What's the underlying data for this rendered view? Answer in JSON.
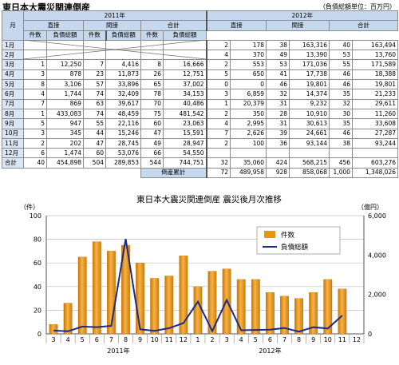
{
  "page_title": "東日本大震災関連倒産",
  "unit_note": "（負債総額単位：百万円）",
  "table": {
    "col_month": "月",
    "year_headers": [
      "2011年",
      "2012年"
    ],
    "group_headers": [
      "直接",
      "間接",
      "合計"
    ],
    "sub_headers": [
      "件数",
      "負債総額"
    ],
    "rows": [
      {
        "m": "1月",
        "y2011": [
          "",
          "",
          "",
          "",
          "",
          ""
        ],
        "y2012": [
          "2",
          "178",
          "38",
          "163,316",
          "40",
          "163,494"
        ]
      },
      {
        "m": "2月",
        "y2011": [
          "",
          "",
          "",
          "",
          "",
          ""
        ],
        "y2012": [
          "4",
          "370",
          "49",
          "13,390",
          "53",
          "13,760"
        ]
      },
      {
        "m": "3月",
        "y2011": [
          "1",
          "12,250",
          "7",
          "4,416",
          "8",
          "16,666"
        ],
        "y2012": [
          "2",
          "553",
          "53",
          "171,036",
          "55",
          "171,589"
        ]
      },
      {
        "m": "4月",
        "y2011": [
          "3",
          "878",
          "23",
          "11,873",
          "26",
          "12,751"
        ],
        "y2012": [
          "5",
          "650",
          "41",
          "17,738",
          "46",
          "18,388"
        ]
      },
      {
        "m": "5月",
        "y2011": [
          "8",
          "3,106",
          "57",
          "33,896",
          "65",
          "37,002"
        ],
        "y2012": [
          "0",
          "0",
          "46",
          "19,801",
          "46",
          "19,801"
        ]
      },
      {
        "m": "6月",
        "y2011": [
          "4",
          "1,744",
          "74",
          "32,409",
          "78",
          "34,153"
        ],
        "y2012": [
          "3",
          "6,859",
          "32",
          "14,374",
          "35",
          "21,233"
        ]
      },
      {
        "m": "7月",
        "y2011": [
          "7",
          "869",
          "63",
          "39,617",
          "70",
          "40,486"
        ],
        "y2012": [
          "1",
          "20,379",
          "31",
          "9,232",
          "32",
          "29,611"
        ]
      },
      {
        "m": "8月",
        "y2011": [
          "1",
          "433,083",
          "74",
          "48,459",
          "75",
          "481,542"
        ],
        "y2012": [
          "2",
          "350",
          "28",
          "10,910",
          "30",
          "11,260"
        ]
      },
      {
        "m": "9月",
        "y2011": [
          "5",
          "947",
          "55",
          "22,116",
          "60",
          "23,063"
        ],
        "y2012": [
          "4",
          "2,995",
          "31",
          "30,613",
          "35",
          "33,608"
        ]
      },
      {
        "m": "10月",
        "y2011": [
          "3",
          "345",
          "44",
          "15,246",
          "47",
          "15,591"
        ],
        "y2012": [
          "7",
          "2,626",
          "39",
          "24,661",
          "46",
          "27,287"
        ]
      },
      {
        "m": "11月",
        "y2011": [
          "2",
          "202",
          "47",
          "28,745",
          "49",
          "28,947"
        ],
        "y2012": [
          "2",
          "100",
          "36",
          "93,144",
          "38",
          "93,244"
        ]
      },
      {
        "m": "12月",
        "y2011": [
          "6",
          "1,474",
          "60",
          "53,076",
          "66",
          "54,550"
        ],
        "y2012": [
          "",
          "",
          "",
          "",
          "",
          ""
        ]
      }
    ],
    "total": {
      "m": "合計",
      "y2011": [
        "40",
        "454,898",
        "504",
        "289,853",
        "544",
        "744,751"
      ],
      "y2012": [
        "32",
        "35,060",
        "424",
        "568,215",
        "456",
        "603,276"
      ]
    },
    "cumulative": {
      "label": "倒産累計",
      "values": [
        "72",
        "489,958",
        "928",
        "858,068",
        "1,000",
        "1,348,026"
      ]
    }
  },
  "chart_data": {
    "type": "bar+line",
    "title": "東日本大震災関連倒産 震災後月次推移",
    "left_axis_unit": "（件）",
    "right_axis_unit": "（億円）",
    "categories": [
      "3",
      "4",
      "5",
      "6",
      "7",
      "8",
      "9",
      "10",
      "11",
      "12",
      "1",
      "2",
      "3",
      "4",
      "5",
      "6",
      "7",
      "8",
      "9",
      "10",
      "11",
      "12"
    ],
    "year_labels": [
      "2011年",
      "2012年"
    ],
    "left_ticks": [
      "0",
      "20",
      "40",
      "60",
      "80",
      "100"
    ],
    "right_ticks": [
      "0",
      "2,000",
      "4,000",
      "6,000"
    ],
    "ylim_left": [
      0,
      100
    ],
    "ylim_right": [
      0,
      6000
    ],
    "series": [
      {
        "name": "件数",
        "type": "bar",
        "axis": "left",
        "color": "#e8950f",
        "values": [
          8,
          26,
          65,
          78,
          70,
          75,
          60,
          47,
          49,
          66,
          40,
          53,
          55,
          46,
          46,
          35,
          32,
          30,
          35,
          46,
          38,
          null
        ]
      },
      {
        "name": "負債総額",
        "type": "line",
        "axis": "right",
        "color": "#1c2b86",
        "values": [
          167,
          128,
          370,
          342,
          405,
          4815,
          231,
          156,
          289,
          546,
          1635,
          138,
          1716,
          184,
          198,
          212,
          296,
          113,
          336,
          273,
          932,
          null
        ]
      }
    ],
    "grid": true,
    "legend": "top-right"
  }
}
